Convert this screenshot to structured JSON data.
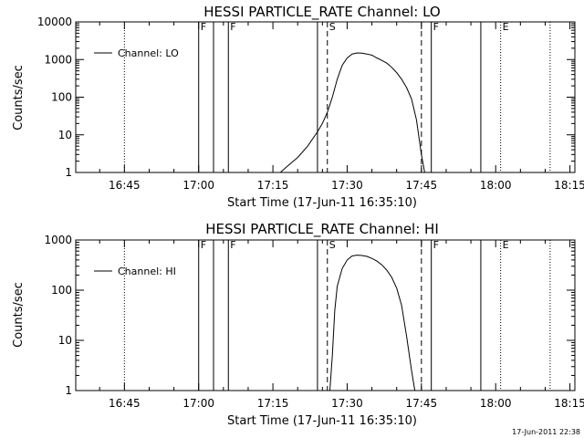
{
  "colors": {
    "background": "#ffffff",
    "foreground": "#000000"
  },
  "timestamp": "17-Jun-2011 22:38",
  "chart_data": [
    {
      "type": "line",
      "title": "HESSI PARTICLE_RATE Channel: LO",
      "xlabel": "Start Time (17-Jun-11 16:35:10)",
      "ylabel": "Counts/sec",
      "yscale": "log",
      "ylim": [
        1,
        10000
      ],
      "xlim": [
        "16:35:10",
        "18:16:00"
      ],
      "xticks": [
        "16:45",
        "17:00",
        "17:15",
        "17:30",
        "17:45",
        "18:00",
        "18:15"
      ],
      "yticks": [
        "1",
        "10",
        "100",
        "1000",
        "10000"
      ],
      "legend": {
        "position": "top-left",
        "entries": [
          "Channel: LO"
        ]
      },
      "series": [
        {
          "name": "Channel: LO",
          "x": [
            "17:16:30",
            "17:18:00",
            "17:20:00",
            "17:22:00",
            "17:24:00",
            "17:25:00",
            "17:26:00",
            "17:27:00",
            "17:28:00",
            "17:29:00",
            "17:30:00",
            "17:31:00",
            "17:32:00",
            "17:33:00",
            "17:34:00",
            "17:35:00",
            "17:36:00",
            "17:37:00",
            "17:38:00",
            "17:39:00",
            "17:40:00",
            "17:41:00",
            "17:42:00",
            "17:43:00",
            "17:44:00",
            "17:45:00",
            "17:45:40"
          ],
          "y": [
            0.8,
            1.5,
            2.5,
            5,
            12,
            20,
            40,
            100,
            300,
            700,
            1100,
            1400,
            1500,
            1480,
            1400,
            1300,
            1100,
            950,
            800,
            620,
            450,
            300,
            180,
            90,
            25,
            3,
            0.8
          ]
        }
      ],
      "markers": [
        {
          "time": "16:45",
          "style": "dotted",
          "flag": ""
        },
        {
          "time": "17:00",
          "style": "solid",
          "flag": "F"
        },
        {
          "time": "17:03",
          "style": "solid",
          "flag": ""
        },
        {
          "time": "17:06",
          "style": "solid",
          "flag": "F"
        },
        {
          "time": "17:24",
          "style": "solid",
          "flag": ""
        },
        {
          "time": "17:26",
          "style": "dashed",
          "flag": "S"
        },
        {
          "time": "17:45",
          "style": "dashed",
          "flag": ""
        },
        {
          "time": "17:47",
          "style": "solid",
          "flag": "F"
        },
        {
          "time": "17:57",
          "style": "solid",
          "flag": ""
        },
        {
          "time": "18:01",
          "style": "dotted",
          "flag": "E"
        },
        {
          "time": "18:11",
          "style": "dotted",
          "flag": ""
        }
      ]
    },
    {
      "type": "line",
      "title": "HESSI PARTICLE_RATE Channel: HI",
      "xlabel": "Start Time (17-Jun-11 16:35:10)",
      "ylabel": "Counts/sec",
      "yscale": "log",
      "ylim": [
        1,
        1000
      ],
      "xlim": [
        "16:35:10",
        "18:16:00"
      ],
      "xticks": [
        "16:45",
        "17:00",
        "17:15",
        "17:30",
        "17:45",
        "18:00",
        "18:15"
      ],
      "yticks": [
        "1",
        "10",
        "100",
        "1000"
      ],
      "legend": {
        "position": "top-left",
        "entries": [
          "Channel: HI"
        ]
      },
      "series": [
        {
          "name": "Channel: HI",
          "x": [
            "17:26:30",
            "17:27:00",
            "17:27:30",
            "17:28:00",
            "17:29:00",
            "17:30:00",
            "17:31:00",
            "17:32:00",
            "17:33:00",
            "17:34:00",
            "17:35:00",
            "17:36:00",
            "17:37:00",
            "17:38:00",
            "17:39:00",
            "17:40:00",
            "17:41:00",
            "17:42:00",
            "17:43:00",
            "17:43:40"
          ],
          "y": [
            0.9,
            5,
            40,
            120,
            270,
            400,
            480,
            500,
            490,
            470,
            430,
            380,
            320,
            250,
            180,
            110,
            50,
            12,
            2.5,
            0.9
          ]
        }
      ],
      "markers": [
        {
          "time": "16:45",
          "style": "dotted",
          "flag": ""
        },
        {
          "time": "17:00",
          "style": "solid",
          "flag": "F"
        },
        {
          "time": "17:03",
          "style": "solid",
          "flag": ""
        },
        {
          "time": "17:06",
          "style": "solid",
          "flag": "F"
        },
        {
          "time": "17:24",
          "style": "solid",
          "flag": ""
        },
        {
          "time": "17:26",
          "style": "dashed",
          "flag": "S"
        },
        {
          "time": "17:45",
          "style": "dashed",
          "flag": ""
        },
        {
          "time": "17:47",
          "style": "solid",
          "flag": "F"
        },
        {
          "time": "17:57",
          "style": "solid",
          "flag": ""
        },
        {
          "time": "18:01",
          "style": "dotted",
          "flag": "E"
        },
        {
          "time": "18:11",
          "style": "dotted",
          "flag": ""
        }
      ]
    }
  ]
}
